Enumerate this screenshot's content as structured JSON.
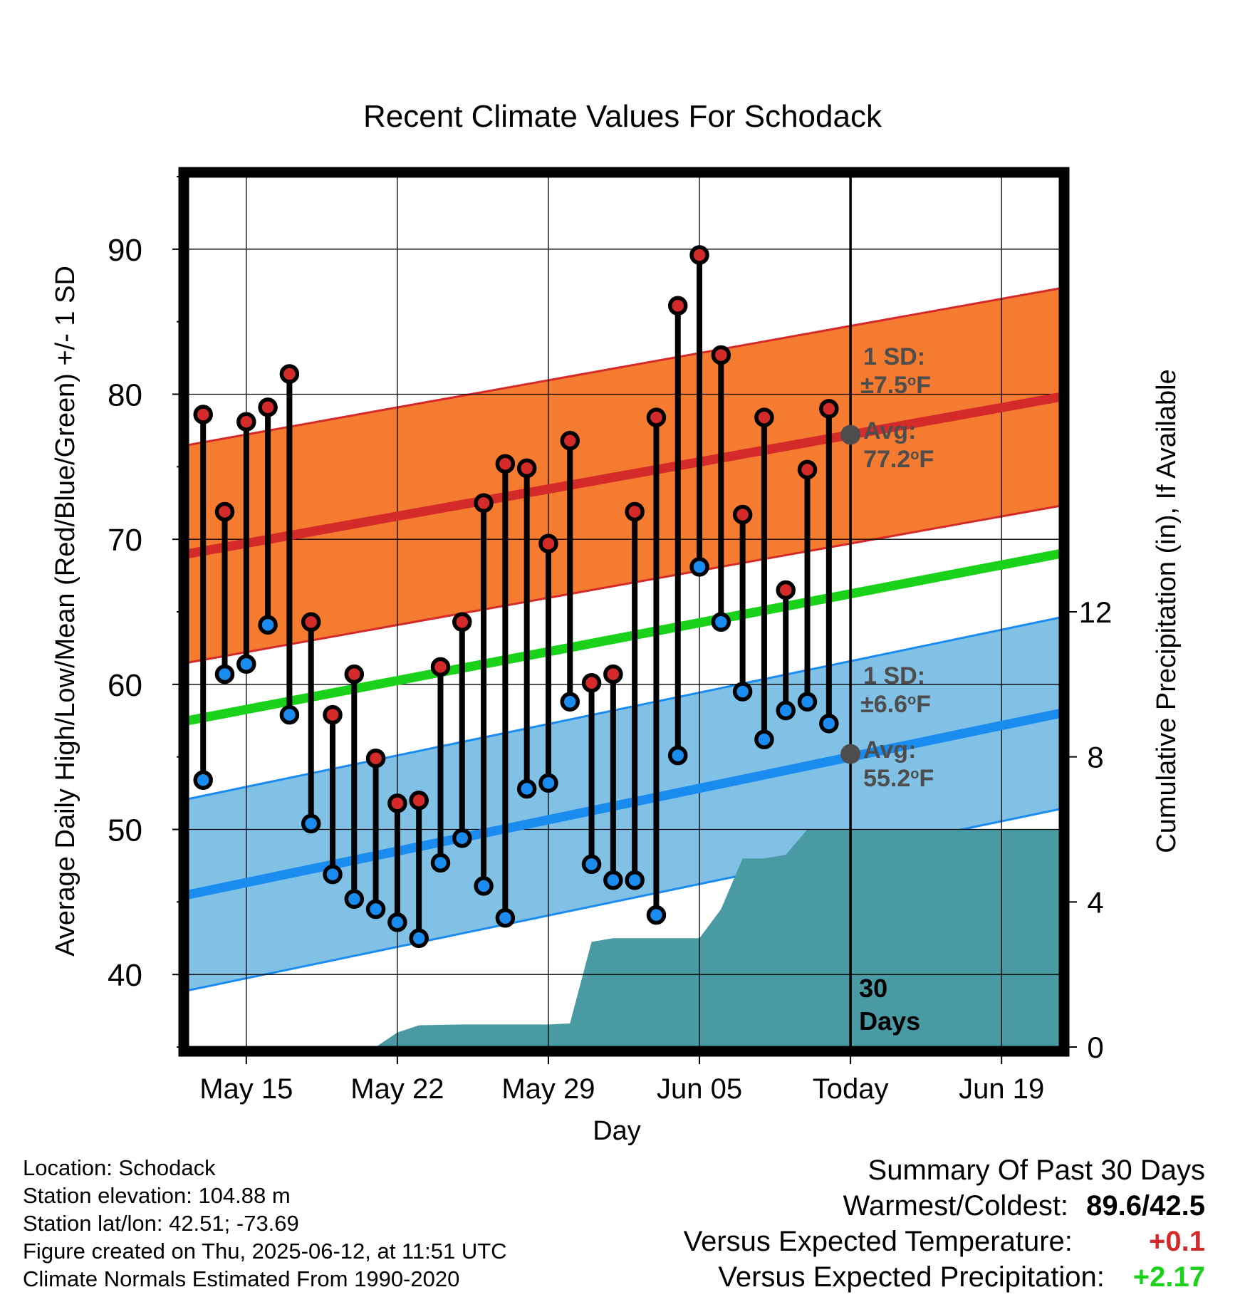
{
  "chart_data": {
    "type": "line",
    "title": "Recent Climate Values For Schodack",
    "xlabel": "Day",
    "ylabel_left": "Average Daily High/Low/Mean (Red/Blue/Green) +/- 1 SD",
    "ylabel_right": "Cumulative Precipitation (in), If Available",
    "ylim_left": [
      35,
      95
    ],
    "ylim_right": [
      0,
      24
    ],
    "y_ticks_left": [
      "40",
      "50",
      "60",
      "70",
      "80",
      "90"
    ],
    "y_ticks_right": [
      "0",
      "4",
      "8",
      "12"
    ],
    "x_tick_labels": [
      "May 15",
      "May 22",
      "May 29",
      "Jun 05",
      "Today",
      "Jun 19"
    ],
    "x_tick_days": [
      15,
      22,
      29,
      36,
      43,
      50
    ],
    "x_range_days": [
      12.3,
      52.7
    ],
    "today_day": 43,
    "today_label": "30 Days",
    "days": [
      13,
      14,
      15,
      16,
      17,
      18,
      19,
      20,
      21,
      22,
      23,
      24,
      25,
      26,
      27,
      28,
      29,
      30,
      31,
      32,
      33,
      34,
      35,
      36,
      37,
      38,
      39,
      40,
      41,
      42
    ],
    "highs": [
      78.6,
      71.9,
      78.1,
      79.1,
      81.4,
      64.3,
      57.9,
      60.7,
      54.9,
      51.8,
      52.0,
      61.2,
      64.3,
      72.5,
      75.2,
      74.9,
      69.7,
      76.8,
      60.1,
      60.7,
      71.9,
      78.4,
      86.1,
      89.6,
      82.7,
      71.7,
      78.4,
      66.5,
      74.8,
      79.0
    ],
    "lows": [
      53.4,
      60.7,
      61.4,
      64.1,
      57.9,
      50.4,
      46.9,
      45.2,
      44.5,
      43.6,
      42.5,
      47.7,
      49.4,
      46.1,
      43.9,
      52.8,
      53.2,
      58.8,
      47.6,
      46.5,
      46.5,
      44.1,
      55.1,
      68.1,
      64.3,
      59.5,
      56.2,
      58.2,
      58.8,
      57.3
    ],
    "normal_high": {
      "start": 69.0,
      "end": 79.8,
      "sd": 7.5
    },
    "normal_low": {
      "start": 45.5,
      "end": 58.0,
      "sd": 6.6
    },
    "normal_mean": {
      "start": 57.5,
      "end": 69.0
    },
    "high_annotation": {
      "sd_line1": "1 SD:",
      "sd_line2": "±7.5",
      "avg_line1": "Avg:",
      "avg_line2": "77.2",
      "unit": "F",
      "deg": "o",
      "avg_value": 77.2
    },
    "low_annotation": {
      "sd_line1": "1 SD:",
      "sd_line2": "±6.6",
      "avg_line1": "Avg:",
      "avg_line2": "55.2",
      "unit": "F",
      "deg": "o",
      "avg_value": 55.2
    },
    "precip_cumulative": [
      [
        21.0,
        0.0
      ],
      [
        22.0,
        0.4
      ],
      [
        23.0,
        0.6
      ],
      [
        25.0,
        0.62
      ],
      [
        29.0,
        0.62
      ],
      [
        30.0,
        0.65
      ],
      [
        31.0,
        2.9
      ],
      [
        32.0,
        3.0
      ],
      [
        35.0,
        3.0
      ],
      [
        36.0,
        3.0
      ],
      [
        37.0,
        3.8
      ],
      [
        38.0,
        5.2
      ],
      [
        39.0,
        5.2
      ],
      [
        40.0,
        5.3
      ],
      [
        41.0,
        6.0
      ],
      [
        52.7,
        6.0
      ]
    ],
    "colors": {
      "high_band": "#f47b30",
      "high_line": "#d42a2a",
      "low_band": "#82c1e6",
      "low_line": "#1a8cf0",
      "mean_line": "#1ad21a",
      "precip": "#4a9aa3",
      "high_dot": "#d42a2a",
      "low_dot": "#1a8cf0",
      "avg_marker": "#4d4d4d",
      "annotation_text": "#4d4d4d"
    }
  },
  "footer": {
    "location": "Location: Schodack",
    "elevation": "Station elevation: 104.88 m",
    "latlon": "Station lat/lon: 42.51; -73.69",
    "created": "Figure created on Thu, 2025-06-12, at 11:51 UTC",
    "normals": "Climate Normals Estimated From 1990-2020"
  },
  "summary": {
    "title": "Summary Of Past 30 Days",
    "warmest_label": "Warmest/Coldest:",
    "warmest_value": "89.6/42.5",
    "temp_label": "Versus Expected Temperature:",
    "temp_value": "+0.1",
    "temp_color": "#d42a2a",
    "precip_label": "Versus Expected Precipitation:",
    "precip_value": "+2.17",
    "precip_color": "#1ad21a"
  }
}
